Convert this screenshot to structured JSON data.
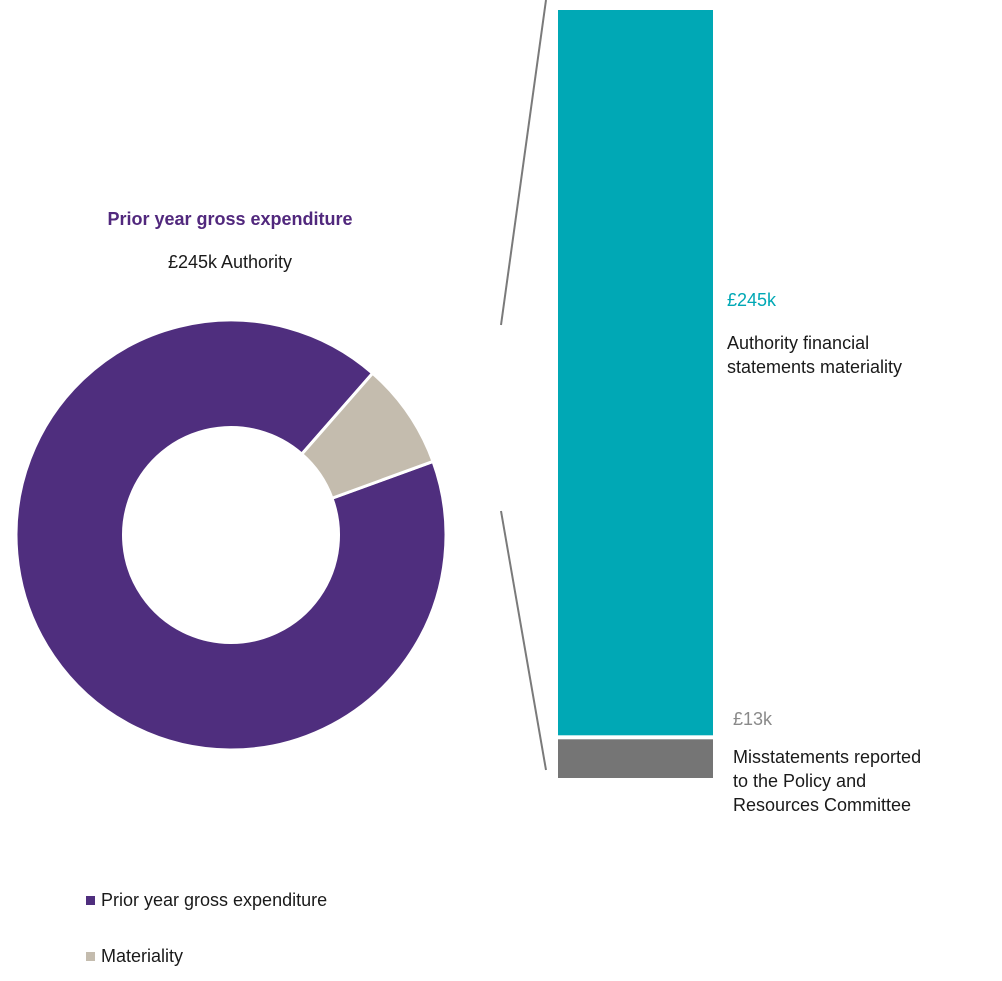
{
  "colors": {
    "expenditure": "#4f2e7e",
    "materiality": "#c4bcae",
    "bar_main": "#00a8b5",
    "bar_misstatements": "#757575",
    "connector": "#7a7a7a",
    "title": "#51287d",
    "value_main": "#00a8b5",
    "value_misstatements": "#8a8a8a"
  },
  "donut": {
    "title": "Prior year gross expenditure",
    "subtitle": "£245k Authority"
  },
  "bar": {
    "main_value_label": "£245k",
    "main_desc_lines": [
      "Authority financial",
      "statements materiality"
    ],
    "misstatements_value_label": "£13k",
    "misstatements_desc_lines": [
      "Misstatements reported",
      "to the Policy and",
      "Resources Committee"
    ]
  },
  "legend": [
    {
      "label": "Prior year gross expenditure",
      "color": "#4f2e7e"
    },
    {
      "label": "Materiality",
      "color": "#c4bcae"
    }
  ],
  "chart_data": [
    {
      "type": "pie",
      "title": "Prior year gross expenditure",
      "subtitle": "£245k Authority",
      "hole": 0.5,
      "start_angle_deg": -20,
      "slices": [
        {
          "name": "Prior year gross expenditure",
          "value": 92,
          "color": "#4f2e7e"
        },
        {
          "name": "Materiality",
          "value": 8,
          "color": "#c4bcae"
        }
      ]
    },
    {
      "type": "bar",
      "stacked": true,
      "categories": [
        "Materiality"
      ],
      "series": [
        {
          "name": "Misstatements reported to the Policy and Resources Committee",
          "values": [
            13
          ],
          "label": "£13k",
          "color": "#757575"
        },
        {
          "name": "Authority financial statements materiality",
          "values": [
            245
          ],
          "label": "£245k",
          "color": "#00a8b5"
        }
      ],
      "ylim": [
        0,
        258
      ]
    }
  ]
}
